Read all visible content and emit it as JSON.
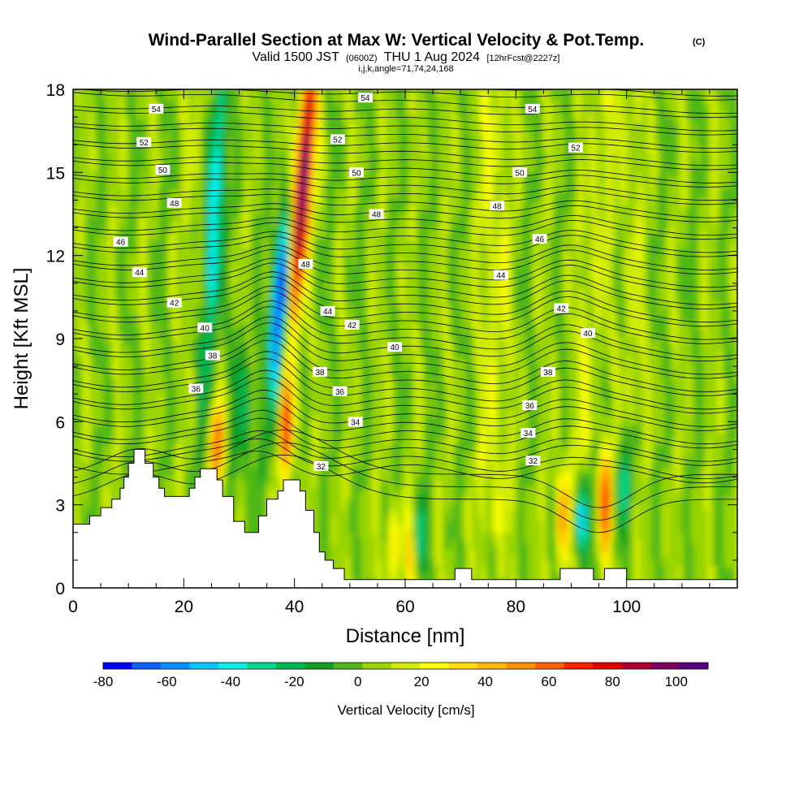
{
  "chart_data": {
    "type": "heatmap",
    "title": "Wind-Parallel Section at Max W: Vertical Velocity & Pot.Temp.",
    "title_mark": "(C)",
    "subtitle": {
      "valid": "Valid 1500 JST",
      "utc": "(0600Z)",
      "date": "THU 1 Aug 2024",
      "forecast": "[12hrFcst@2227z]"
    },
    "grid_info": "i,j,k,angle=71,74,24,168",
    "xlabel": "Distance [nm]",
    "ylabel": "Height [Kft MSL]",
    "xlim": [
      0,
      120
    ],
    "ylim": [
      0,
      18
    ],
    "x_ticks": [
      "0",
      "20",
      "40",
      "60",
      "80",
      "100"
    ],
    "y_ticks": [
      "0",
      "3",
      "6",
      "9",
      "12",
      "15",
      "18"
    ],
    "colorbar": {
      "label": "Vertical Velocity [cm/s]",
      "range": [
        -80,
        110
      ],
      "tick_values": [
        "-80",
        "-60",
        "-40",
        "-20",
        "0",
        "20",
        "40",
        "60",
        "80",
        "100"
      ],
      "colors": [
        "#0000ff",
        "#1060ff",
        "#0090ff",
        "#00c8ff",
        "#00f0f0",
        "#00d890",
        "#00b850",
        "#10a020",
        "#50b818",
        "#98d400",
        "#d2ec00",
        "#ffff00",
        "#ffdd00",
        "#ffb800",
        "#ff9000",
        "#ff6000",
        "#ff2000",
        "#e00000",
        "#b00030",
        "#800060",
        "#580080"
      ]
    },
    "theta_contour_labels": [
      {
        "text": "54",
        "x": 15.0,
        "y": 17.3
      },
      {
        "text": "52",
        "x": 12.8,
        "y": 16.1
      },
      {
        "text": "50",
        "x": 16.2,
        "y": 15.1
      },
      {
        "text": "48",
        "x": 18.3,
        "y": 13.9
      },
      {
        "text": "46",
        "x": 8.6,
        "y": 12.5
      },
      {
        "text": "44",
        "x": 12.0,
        "y": 11.4
      },
      {
        "text": "42",
        "x": 18.3,
        "y": 10.3
      },
      {
        "text": "40",
        "x": 23.8,
        "y": 9.4
      },
      {
        "text": "38",
        "x": 25.2,
        "y": 8.4
      },
      {
        "text": "36",
        "x": 22.2,
        "y": 7.2
      },
      {
        "text": "54",
        "x": 52.8,
        "y": 17.7
      },
      {
        "text": "52",
        "x": 47.8,
        "y": 16.2
      },
      {
        "text": "50",
        "x": 51.2,
        "y": 15.0
      },
      {
        "text": "48",
        "x": 54.8,
        "y": 13.5
      },
      {
        "text": "48",
        "x": 42.0,
        "y": 11.7
      },
      {
        "text": "44",
        "x": 46.0,
        "y": 10.0
      },
      {
        "text": "42",
        "x": 50.4,
        "y": 9.5
      },
      {
        "text": "40",
        "x": 58.1,
        "y": 8.7
      },
      {
        "text": "38",
        "x": 44.6,
        "y": 7.8
      },
      {
        "text": "36",
        "x": 48.2,
        "y": 7.1
      },
      {
        "text": "34",
        "x": 51.0,
        "y": 6.0
      },
      {
        "text": "32",
        "x": 44.8,
        "y": 4.4
      },
      {
        "text": "54",
        "x": 83.0,
        "y": 17.3
      },
      {
        "text": "52",
        "x": 90.8,
        "y": 15.9
      },
      {
        "text": "50",
        "x": 80.7,
        "y": 15.0
      },
      {
        "text": "48",
        "x": 76.6,
        "y": 13.8
      },
      {
        "text": "46",
        "x": 84.3,
        "y": 12.6
      },
      {
        "text": "44",
        "x": 77.3,
        "y": 11.3
      },
      {
        "text": "42",
        "x": 88.2,
        "y": 10.1
      },
      {
        "text": "40",
        "x": 93.0,
        "y": 9.2
      },
      {
        "text": "38",
        "x": 85.8,
        "y": 7.8
      },
      {
        "text": "36",
        "x": 82.5,
        "y": 6.6
      },
      {
        "text": "34",
        "x": 82.2,
        "y": 5.6
      },
      {
        "text": "32",
        "x": 83.1,
        "y": 4.6
      }
    ],
    "terrain_profile": [
      [
        0,
        2.3
      ],
      [
        3,
        2.3
      ],
      [
        3,
        2.6
      ],
      [
        5,
        2.6
      ],
      [
        5,
        2.9
      ],
      [
        7,
        2.9
      ],
      [
        7,
        3.2
      ],
      [
        8.5,
        3.2
      ],
      [
        8.5,
        3.6
      ],
      [
        9.2,
        3.6
      ],
      [
        9.2,
        4.0
      ],
      [
        10,
        4.0
      ],
      [
        10,
        4.5
      ],
      [
        11,
        4.5
      ],
      [
        11,
        5.0
      ],
      [
        13,
        5.0
      ],
      [
        13,
        4.5
      ],
      [
        14.5,
        4.5
      ],
      [
        14.5,
        4.0
      ],
      [
        15.5,
        4.0
      ],
      [
        15.5,
        3.6
      ],
      [
        16.5,
        3.6
      ],
      [
        16.5,
        3.3
      ],
      [
        21,
        3.3
      ],
      [
        21,
        3.6
      ],
      [
        22,
        3.6
      ],
      [
        22,
        4.0
      ],
      [
        23,
        4.0
      ],
      [
        23,
        4.3
      ],
      [
        26,
        4.3
      ],
      [
        26,
        3.9
      ],
      [
        27,
        3.9
      ],
      [
        27,
        3.3
      ],
      [
        29,
        3.3
      ],
      [
        29,
        2.4
      ],
      [
        31,
        2.4
      ],
      [
        31,
        2.0
      ],
      [
        33.5,
        2.0
      ],
      [
        33.5,
        2.6
      ],
      [
        35,
        2.6
      ],
      [
        35,
        3.2
      ],
      [
        37,
        3.2
      ],
      [
        37,
        3.5
      ],
      [
        38,
        3.5
      ],
      [
        38,
        3.9
      ],
      [
        41,
        3.9
      ],
      [
        41,
        3.5
      ],
      [
        42,
        3.5
      ],
      [
        42,
        2.8
      ],
      [
        43.5,
        2.8
      ],
      [
        43.5,
        2.0
      ],
      [
        44.5,
        2.0
      ],
      [
        44.5,
        1.3
      ],
      [
        45.5,
        1.3
      ],
      [
        45.5,
        1.0
      ],
      [
        47,
        1.0
      ],
      [
        47,
        0.7
      ],
      [
        49,
        0.7
      ],
      [
        49,
        0.3
      ],
      [
        69,
        0.3
      ],
      [
        69,
        0.7
      ],
      [
        72,
        0.7
      ],
      [
        72,
        0.3
      ],
      [
        88,
        0.3
      ],
      [
        88,
        0.7
      ],
      [
        94,
        0.7
      ],
      [
        94,
        0.3
      ],
      [
        96,
        0.3
      ],
      [
        96,
        0.7
      ],
      [
        100,
        0.7
      ],
      [
        100,
        0.3
      ],
      [
        120,
        0.3
      ]
    ]
  }
}
